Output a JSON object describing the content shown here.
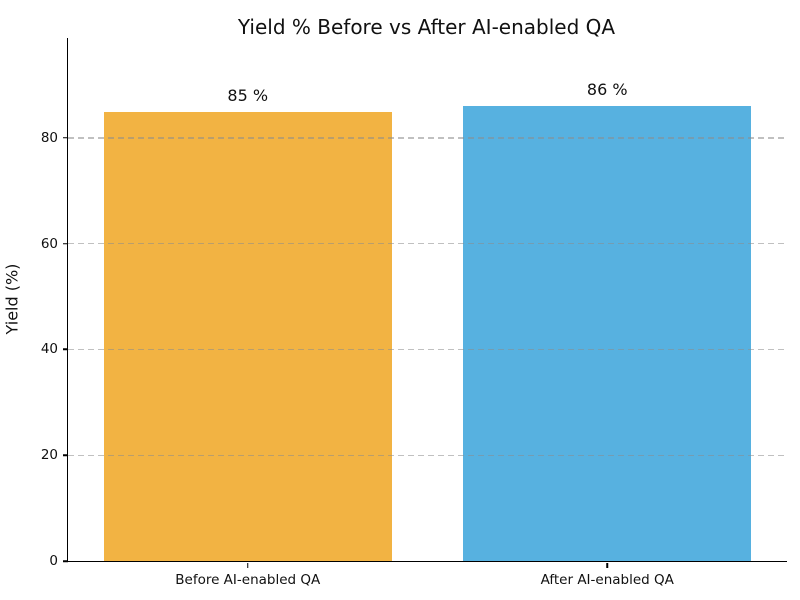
{
  "chart_data": {
    "type": "bar",
    "title": "Yield % Before vs After AI-enabled QA",
    "xlabel": "",
    "ylabel": "Yield (%)",
    "categories": [
      "Before AI-enabled QA",
      "After AI-enabled QA"
    ],
    "values": [
      85,
      86
    ],
    "value_labels": [
      "85 %",
      "86 %"
    ],
    "bar_colors": [
      "#F2B343",
      "#57B1E0"
    ],
    "ylim": [
      0,
      98.9
    ],
    "yticks": [
      0,
      20,
      40,
      60,
      80
    ],
    "bar_width_fraction": 0.8,
    "grid": "horizontal dashed, drawn over bars",
    "legend": "none",
    "spines": [
      "left",
      "bottom"
    ]
  }
}
